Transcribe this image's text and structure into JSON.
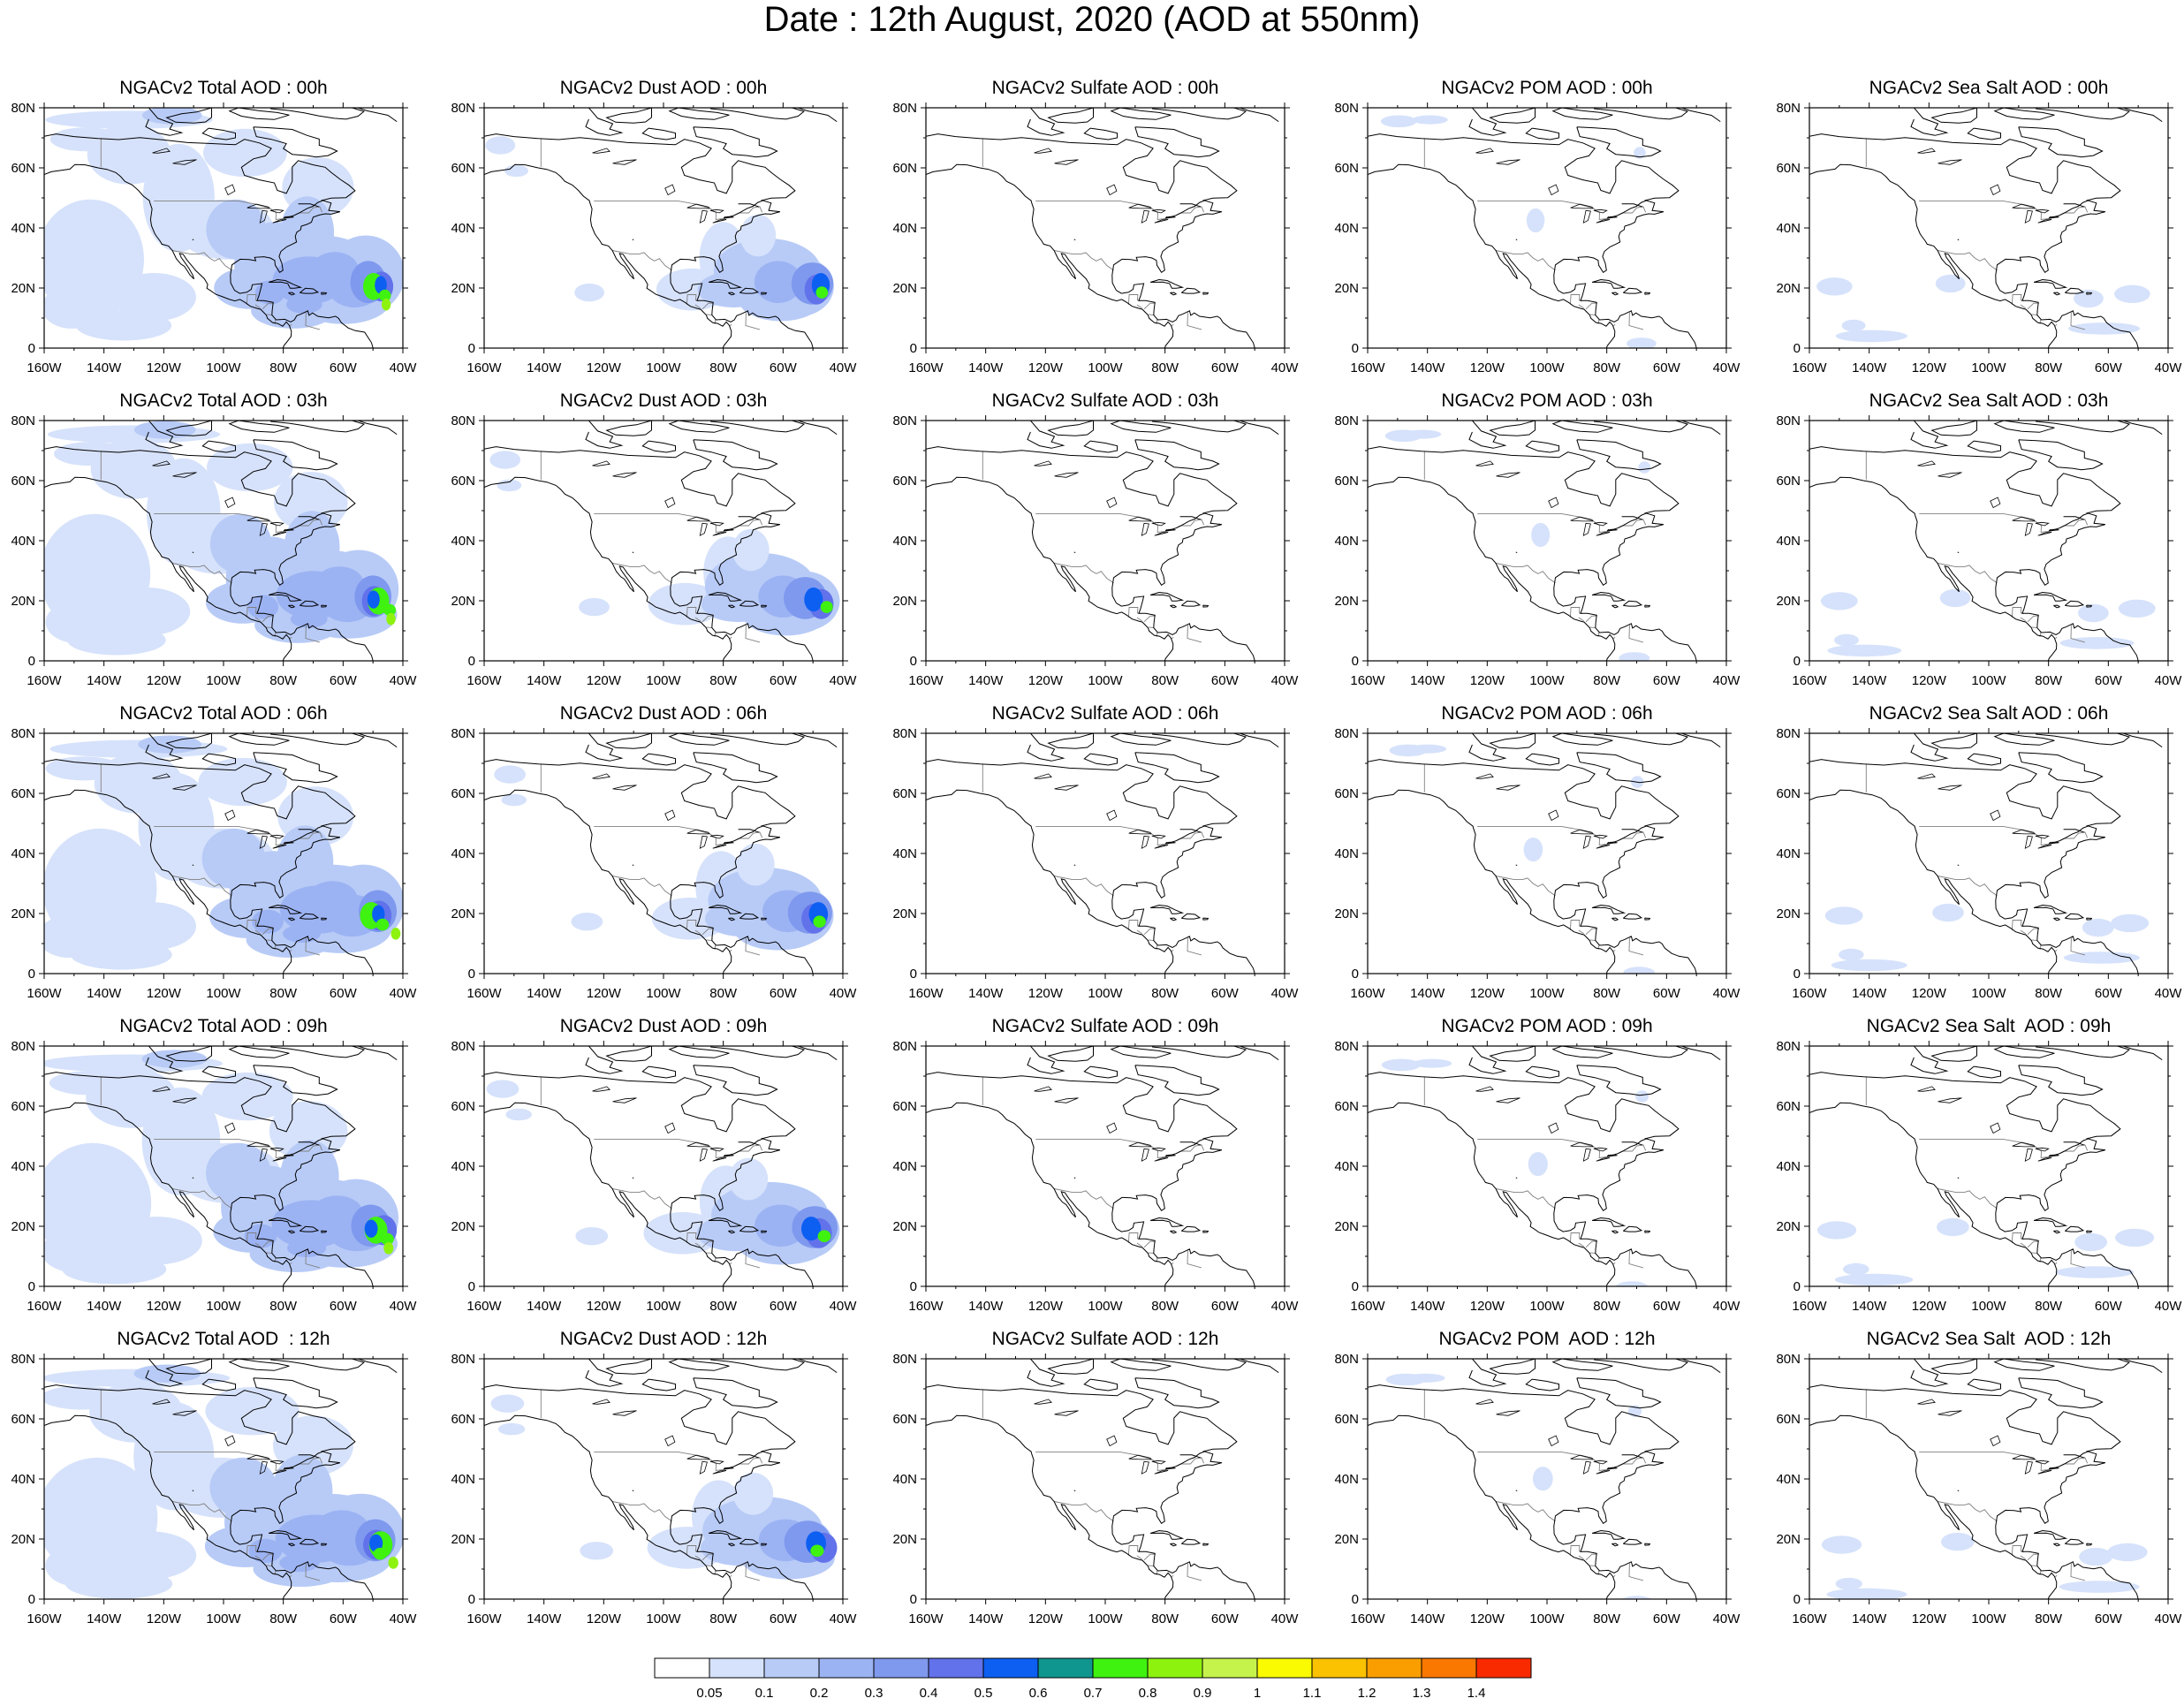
{
  "title": "Date : 12th August, 2020 (AOD at 550nm)",
  "axes": {
    "lon_ticks": [
      "160W",
      "140W",
      "120W",
      "100W",
      "80W",
      "60W",
      "40W"
    ],
    "lat_ticks": [
      "0",
      "20N",
      "40N",
      "60N",
      "80N"
    ],
    "lon_range": [
      -160,
      -40
    ],
    "lat_range": [
      0,
      80
    ]
  },
  "species": [
    "Total",
    "Dust",
    "Sulfate",
    "POM",
    "Sea Salt"
  ],
  "hours": [
    "00h",
    "03h",
    "06h",
    "09h",
    "12h"
  ],
  "panels": [
    [
      {
        "title": "NGACv2 Total AOD : 00h",
        "species": "Total",
        "hour": "00h"
      },
      {
        "title": "NGACv2 Dust AOD : 00h",
        "species": "Dust",
        "hour": "00h"
      },
      {
        "title": "NGACv2 Sulfate AOD : 00h",
        "species": "Sulfate",
        "hour": "00h"
      },
      {
        "title": "NGACv2 POM AOD : 00h",
        "species": "POM",
        "hour": "00h"
      },
      {
        "title": "NGACv2 Sea Salt AOD : 00h",
        "species": "Sea Salt",
        "hour": "00h"
      }
    ],
    [
      {
        "title": "NGACv2 Total AOD : 03h",
        "species": "Total",
        "hour": "03h"
      },
      {
        "title": "NGACv2 Dust AOD : 03h",
        "species": "Dust",
        "hour": "03h"
      },
      {
        "title": "NGACv2 Sulfate AOD : 03h",
        "species": "Sulfate",
        "hour": "03h"
      },
      {
        "title": "NGACv2 POM AOD : 03h",
        "species": "POM",
        "hour": "03h"
      },
      {
        "title": "NGACv2 Sea Salt AOD : 03h",
        "species": "Sea Salt",
        "hour": "03h"
      }
    ],
    [
      {
        "title": "NGACv2 Total AOD : 06h",
        "species": "Total",
        "hour": "06h"
      },
      {
        "title": "NGACv2 Dust AOD : 06h",
        "species": "Dust",
        "hour": "06h"
      },
      {
        "title": "NGACv2 Sulfate AOD : 06h",
        "species": "Sulfate",
        "hour": "06h"
      },
      {
        "title": "NGACv2 POM AOD : 06h",
        "species": "POM",
        "hour": "06h"
      },
      {
        "title": "NGACv2 Sea Salt AOD : 06h",
        "species": "Sea Salt",
        "hour": "06h"
      }
    ],
    [
      {
        "title": "NGACv2 Total AOD : 09h",
        "species": "Total",
        "hour": "09h"
      },
      {
        "title": "NGACv2 Dust AOD : 09h",
        "species": "Dust",
        "hour": "09h"
      },
      {
        "title": "NGACv2 Sulfate AOD : 09h",
        "species": "Sulfate",
        "hour": "09h"
      },
      {
        "title": "NGACv2 POM AOD : 09h",
        "species": "POM",
        "hour": "09h"
      },
      {
        "title": "NGACv2 Sea Salt  AOD : 09h",
        "species": "Sea Salt",
        "hour": "09h"
      }
    ],
    [
      {
        "title": "NGACv2 Total AOD  : 12h",
        "species": "Total",
        "hour": "12h"
      },
      {
        "title": "NGACv2 Dust AOD : 12h",
        "species": "Dust",
        "hour": "12h"
      },
      {
        "title": "NGACv2 Sulfate AOD : 12h",
        "species": "Sulfate",
        "hour": "12h"
      },
      {
        "title": "NGACv2 POM  AOD : 12h",
        "species": "POM",
        "hour": "12h"
      },
      {
        "title": "NGACv2 Sea Salt  AOD : 12h",
        "species": "Sea Salt",
        "hour": "12h"
      }
    ]
  ],
  "colorbar": {
    "labels": [
      "0.05",
      "0.1",
      "0.2",
      "0.3",
      "0.4",
      "0.5",
      "0.6",
      "0.7",
      "0.8",
      "0.9",
      "1",
      "1.1",
      "1.2",
      "1.3",
      "1.4"
    ],
    "colors": [
      "#ffffff",
      "#d6e2fb",
      "#b8cbf7",
      "#9cb3f3",
      "#7f99ee",
      "#6272ea",
      "#0d5ff2",
      "#0f968f",
      "#3ff20f",
      "#8ef20f",
      "#c6f24c",
      "#fafa00",
      "#fac200",
      "#fa9e00",
      "#fa7800",
      "#fa2a00"
    ]
  },
  "style": {
    "coastline_color": "#000000",
    "border_color": "#808080"
  }
}
